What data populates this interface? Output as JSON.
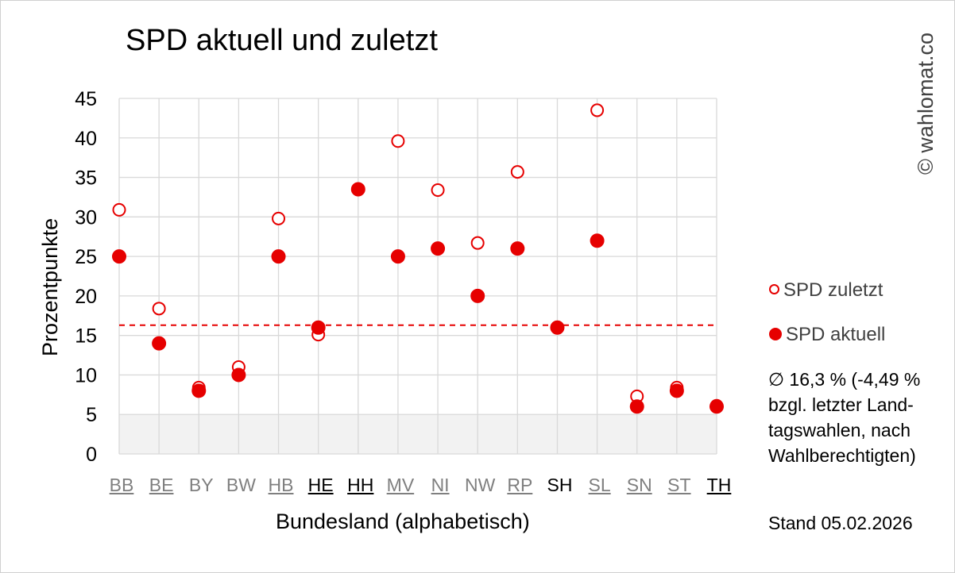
{
  "title": "SPD aktuell und zuletzt",
  "watermark": "© wahlomat.co",
  "legend": {
    "zuletzt": "SPD zuletzt",
    "aktuell": "SPD aktuell"
  },
  "note": "∅ 16,3 % (-4,49 %\nbzgl. letzter Land-\ntagswahlen, nach\nWahlberechtigten)",
  "stand": "Stand 05.02.2026",
  "colors": {
    "accent": "#e60000",
    "grid": "#d9d9d9",
    "threshold_band": "#f2f2f2"
  },
  "chart_data": {
    "type": "scatter",
    "xlabel": "Bundesland (alphabetisch)",
    "ylabel": "Prozentpunkte",
    "ylim": [
      0,
      45
    ],
    "yticks": [
      0,
      5,
      10,
      15,
      20,
      25,
      30,
      35,
      40,
      45
    ],
    "grid": true,
    "legend_position": "right",
    "categories": [
      "BB",
      "BE",
      "BY",
      "BW",
      "HB",
      "HE",
      "HH",
      "MV",
      "NI",
      "NW",
      "RP",
      "SH",
      "SL",
      "SN",
      "ST",
      "TH"
    ],
    "category_styles": [
      "gray-underlined",
      "gray-underlined",
      "gray",
      "gray",
      "gray-underlined",
      "black-underlined",
      "black-underlined",
      "gray-underlined",
      "gray-underlined",
      "gray",
      "gray-underlined",
      "black",
      "gray-underlined",
      "gray-underlined",
      "gray-underlined",
      "black-underlined"
    ],
    "series": [
      {
        "name": "SPD zuletzt",
        "marker": "open-circle",
        "values": [
          30.9,
          18.4,
          8.4,
          11.0,
          29.8,
          15.1,
          33.5,
          39.6,
          33.4,
          26.7,
          35.7,
          16.0,
          43.5,
          7.3,
          8.4,
          6.1
        ]
      },
      {
        "name": "SPD aktuell",
        "marker": "filled-circle",
        "values": [
          25,
          14,
          8,
          10,
          25,
          16,
          33.5,
          25,
          26,
          20,
          26,
          16,
          27,
          6,
          8,
          6
        ]
      }
    ],
    "average_line": 16.3,
    "threshold_band": [
      0,
      5
    ]
  }
}
